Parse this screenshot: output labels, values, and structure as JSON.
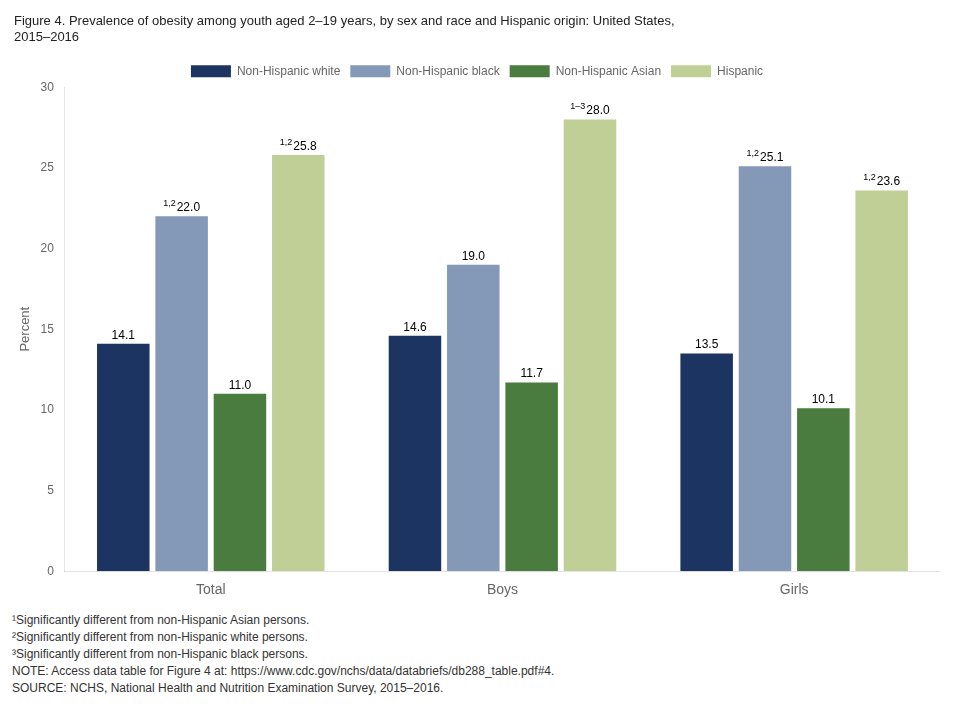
{
  "chart_data": {
    "type": "bar",
    "title": "Figure 4. Prevalence of obesity among youth aged 2–19 years, by sex and race and Hispanic origin: United States,\n2015–2016",
    "categories": [
      "Total",
      "Boys",
      "Girls"
    ],
    "series": [
      {
        "name": "Non-Hispanic white",
        "color": "#1b3461",
        "values": [
          14.1,
          14.6,
          13.5
        ],
        "value_labels": [
          "14.1",
          "14.6",
          "13.5"
        ]
      },
      {
        "name": "Non-Hispanic black",
        "color": "#8499b8",
        "values": [
          22.0,
          19.0,
          25.1
        ],
        "value_labels": [
          "22.0",
          "19.0",
          "25.1"
        ]
      },
      {
        "name": "Non-Hispanic Asian",
        "color": "#4a7c3f",
        "values": [
          11.0,
          11.7,
          10.1
        ],
        "value_labels": [
          "11.0",
          "11.7",
          "10.1"
        ]
      },
      {
        "name": "Hispanic",
        "color": "#bfcf96",
        "values": [
          25.8,
          28.0,
          23.6
        ],
        "value_labels": [
          "25.8",
          "28.0",
          "23.6"
        ]
      }
    ],
    "annotations": [
      {
        "series": "Non-Hispanic black",
        "category": "Total",
        "text": "1,2"
      },
      {
        "series": "Non-Hispanic black",
        "category": "Girls",
        "text": "1,2"
      },
      {
        "series": "Hispanic",
        "category": "Total",
        "text": "1,2"
      },
      {
        "series": "Hispanic",
        "category": "Boys",
        "text": "1–3"
      },
      {
        "series": "Hispanic",
        "category": "Girls",
        "text": "1,2"
      }
    ],
    "footnotes": [
      "¹Significantly different from non-Hispanic Asian persons.",
      "²Significantly different from non-Hispanic white persons.",
      "³Significantly different from non-Hispanic black persons.",
      "NOTE: Access data table for Figure 4 at: https://www.cdc.gov/nchs/data/databriefs/db288_table.pdf#4.",
      "SOURCE: NCHS, National Health and Nutrition Examination Survey, 2015–2016."
    ],
    "ylabel": "Percent",
    "ylim": [
      0,
      30
    ],
    "yticks": [
      0,
      5,
      10,
      15,
      20,
      25,
      30
    ],
    "grid": false,
    "legend": "top",
    "data_labels": true
  }
}
